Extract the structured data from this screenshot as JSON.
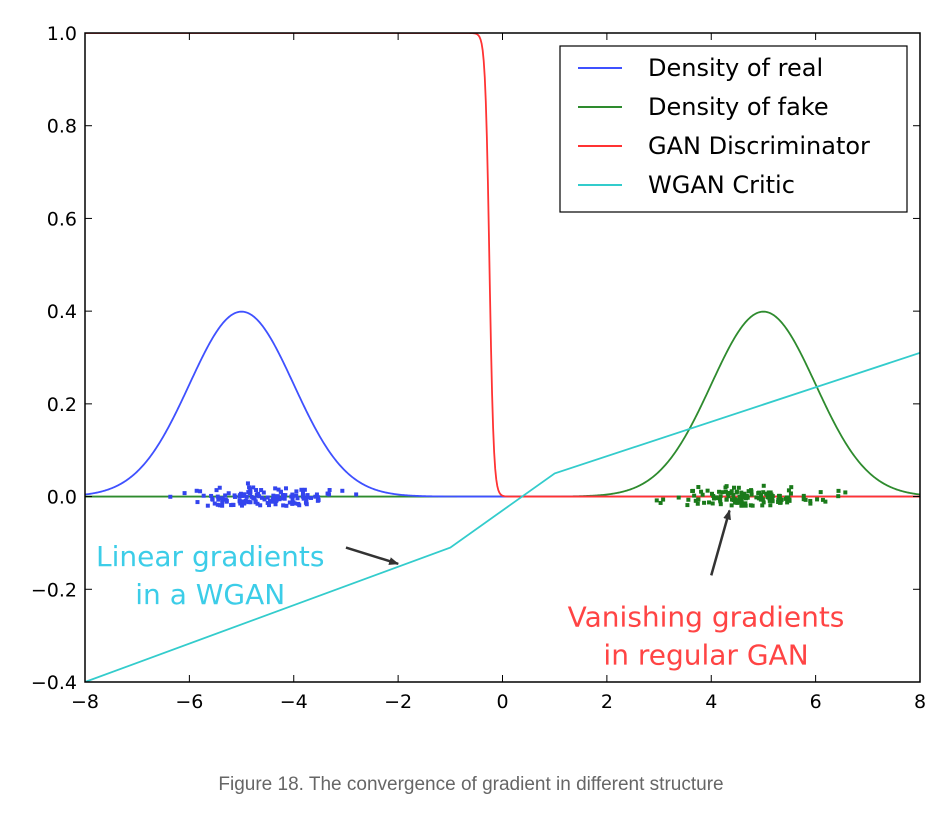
{
  "caption": "Figure 18. The convergence of gradient in different structure",
  "chart_data": {
    "type": "line",
    "xlim": [
      -8,
      8
    ],
    "ylim": [
      -0.4,
      1.0
    ],
    "xticks": [
      -8,
      -6,
      -4,
      -2,
      0,
      2,
      4,
      6,
      8
    ],
    "yticks": [
      -0.4,
      -0.2,
      0.0,
      0.2,
      0.4,
      0.6,
      0.8,
      1.0
    ],
    "xtick_labels": [
      "−8",
      "−6",
      "−4",
      "−2",
      "0",
      "2",
      "4",
      "6",
      "8"
    ],
    "ytick_labels": [
      "−0.4",
      "−0.2",
      "0.0",
      "0.2",
      "0.4",
      "0.6",
      "0.8",
      "1.0"
    ],
    "grid": false,
    "legend_position": "top-right",
    "series": [
      {
        "name": "Density of real",
        "color": "#3f51ff",
        "kind": "gaussian",
        "mean": -5,
        "std": 1
      },
      {
        "name": "Density of fake",
        "color": "#2e8b2e",
        "kind": "gaussian",
        "mean": 5,
        "std": 1
      },
      {
        "name": "GAN Discriminator",
        "color": "#ff3333",
        "kind": "sigmoid_decreasing",
        "center": -0.25,
        "slope": 25
      },
      {
        "name": "WGAN Critic",
        "color": "#33cccc",
        "kind": "polyline",
        "x": [
          -8,
          -1,
          1,
          8
        ],
        "y": [
          -0.4,
          -0.11,
          0.05,
          0.31
        ]
      }
    ],
    "scatter": [
      {
        "label": "real samples",
        "color": "#3344ee",
        "x_range": [
          -7,
          -2.2
        ],
        "y_range": [
          -0.02,
          0.03
        ]
      },
      {
        "label": "fake samples",
        "color": "#1a7a1a",
        "x_range": [
          2.6,
          6.9
        ],
        "y_range": [
          -0.02,
          0.03
        ]
      }
    ],
    "annotations": [
      {
        "lines": [
          "Linear gradients",
          "in a WGAN"
        ],
        "color": "#3ccde8",
        "text_at": [
          -5.6,
          -0.15
        ],
        "arrow_from": [
          -3.0,
          -0.11
        ],
        "arrow_to": [
          -2.0,
          -0.145
        ]
      },
      {
        "lines": [
          "Vanishing gradients",
          "in regular GAN"
        ],
        "color": "#ff4444",
        "text_at": [
          3.9,
          -0.28
        ],
        "arrow_from": [
          4.0,
          -0.17
        ],
        "arrow_to": [
          4.35,
          -0.03
        ]
      }
    ]
  }
}
